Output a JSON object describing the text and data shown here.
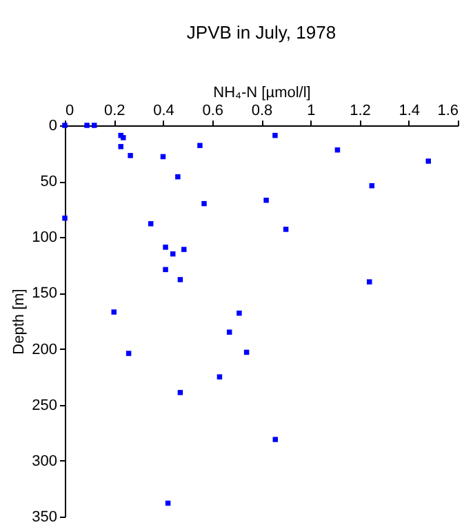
{
  "chart_data": {
    "type": "scatter",
    "title": "JPVB in July, 1978",
    "xlabel": "NH₄-N [µmol/l]",
    "ylabel": "Depth [m]",
    "x": [
      0,
      0.09,
      0.12,
      0.228,
      0.238,
      0.228,
      0.267,
      0.4,
      0.55,
      0.46,
      0.856,
      1.11,
      1.48,
      1.25,
      0.567,
      0.82,
      0,
      0.35,
      0.9,
      0.41,
      0.44,
      0.485,
      0.41,
      0.47,
      1.24,
      0.2,
      0.71,
      0.67,
      0.74,
      0.26,
      0.63,
      0.47,
      0.857,
      0.42
    ],
    "series": [
      {
        "color": "#0000ff",
        "values": [
          0,
          0,
          0,
          9,
          11,
          19,
          27,
          28,
          18,
          46,
          9,
          22,
          32,
          54,
          70,
          67,
          83,
          88,
          93,
          109,
          115,
          111,
          129,
          138,
          140,
          167,
          168,
          185,
          203,
          204,
          225,
          239,
          281,
          338
        ]
      }
    ],
    "marker": "square",
    "grid": false,
    "xlim": [
      0,
      1.6
    ],
    "xticks": [
      0,
      0.2,
      0.4,
      0.6,
      0.8,
      1,
      1.2,
      1.4,
      1.6
    ],
    "ylim": [
      350,
      0
    ],
    "yticks": [
      0,
      50,
      100,
      150,
      200,
      250,
      300,
      350
    ]
  }
}
